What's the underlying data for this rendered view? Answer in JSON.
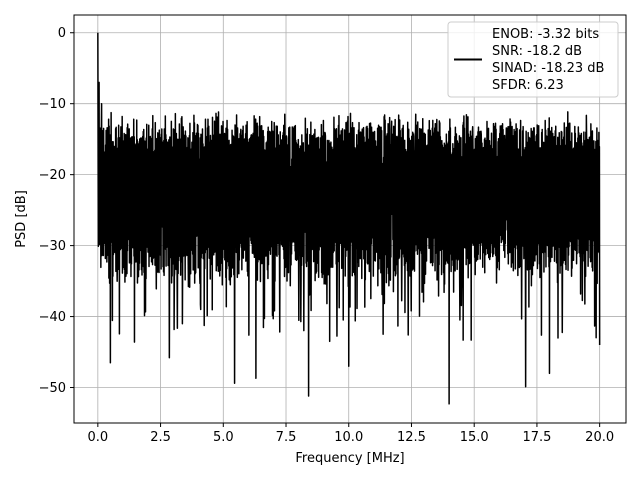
{
  "chart_data": {
    "type": "line",
    "xlabel": "Frequency [MHz]",
    "ylabel": "PSD [dB]",
    "xlim": [
      -0.95,
      21.05
    ],
    "ylim": [
      -55,
      2.5
    ],
    "xticks": [
      0.0,
      2.5,
      5.0,
      7.5,
      10.0,
      12.5,
      15.0,
      17.5,
      20.0
    ],
    "xtick_labels": [
      "0.0",
      "2.5",
      "5.0",
      "7.5",
      "10.0",
      "12.5",
      "15.0",
      "17.5",
      "20.0"
    ],
    "yticks": [
      0,
      -10,
      -20,
      -30,
      -40,
      -50
    ],
    "ytick_labels": [
      "0",
      "−10",
      "−20",
      "−30",
      "−40",
      "−50"
    ],
    "grid": true,
    "legend_position": "top-right",
    "legend_lines": [
      "ENOB: -3.32 bits",
      "SNR: -18.2 dB",
      "SINAD: -18.23 dB",
      "SFDR: 6.23"
    ],
    "line_color": "#000000",
    "series": [
      {
        "x_start": 0.0,
        "x_end": 20.0,
        "baseline_db": -22,
        "band_low_db": -30,
        "band_high_db": -15,
        "peak_db": 0,
        "notable_points": [
          {
            "x": 0.0,
            "y": 0.0
          },
          {
            "x": 0.05,
            "y": -7
          },
          {
            "x": 0.15,
            "y": -10
          },
          {
            "x": 0.5,
            "y": -46.5
          },
          {
            "x": 2.85,
            "y": -45.8
          },
          {
            "x": 5.45,
            "y": -49.4
          },
          {
            "x": 6.3,
            "y": -48.7
          },
          {
            "x": 8.4,
            "y": -51.2
          },
          {
            "x": 10.0,
            "y": -47.0
          },
          {
            "x": 14.0,
            "y": -52.3
          },
          {
            "x": 17.05,
            "y": -49.9
          },
          {
            "x": 18.0,
            "y": -48.0
          },
          {
            "x": 20.0,
            "y": -44.0
          }
        ]
      }
    ]
  }
}
